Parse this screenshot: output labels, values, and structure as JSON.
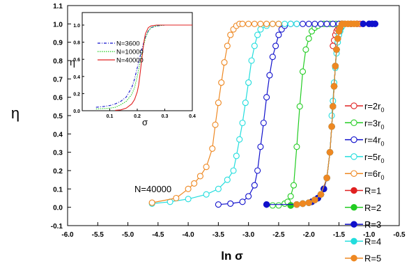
{
  "chart_data": [
    {
      "type": "scatter",
      "xlabel": "ln σ",
      "ylabel": "η",
      "xlim": [
        -6.0,
        -0.5
      ],
      "ylim": [
        -0.1,
        1.1
      ],
      "x_ticks": [
        "-6.0",
        "-5.5",
        "-5.0",
        "-4.5",
        "-4.0",
        "-3.5",
        "-3.0",
        "-2.5",
        "-2.0",
        "-1.5",
        "-1.0",
        "-0.5"
      ],
      "y_ticks": [
        "-0.1",
        "0.0",
        "0.1",
        "0.2",
        "0.3",
        "0.4",
        "0.5",
        "0.6",
        "0.7",
        "0.8",
        "0.9",
        "1.0",
        "1.1"
      ],
      "annotation": "N=40000",
      "legend_position": "right",
      "series": [
        {
          "name": "r=2r0",
          "label_main": "r=2r",
          "label_sub": "0",
          "color": "#e02020",
          "marker": "open",
          "x": [
            -1.6,
            -1.58,
            -1.56,
            -1.54,
            -1.52,
            -1.5,
            -1.48,
            -1.46,
            -1.44,
            -1.4,
            -1.35,
            -1.3,
            -1.25,
            -1.2,
            -1.15,
            -1.1
          ],
          "y": [
            0.88,
            0.91,
            0.94,
            0.96,
            0.97,
            0.98,
            0.99,
            0.995,
            1.0,
            1.0,
            1.0,
            1.0,
            1.0,
            1.0,
            1.0,
            1.0
          ]
        },
        {
          "name": "r=3r0",
          "label_main": "r=3r",
          "label_sub": "0",
          "color": "#22cc22",
          "marker": "open",
          "x": [
            -2.6,
            -2.5,
            -2.4,
            -2.35,
            -2.3,
            -2.25,
            -2.2,
            -2.15,
            -2.1,
            -2.05,
            -2.0,
            -1.95,
            -1.9,
            -1.85,
            -1.8,
            -1.75,
            -1.7,
            -1.65,
            -1.6,
            -1.55,
            -1.5,
            -1.45,
            -1.4
          ],
          "y": [
            0.01,
            0.01,
            0.02,
            0.03,
            0.06,
            0.12,
            0.33,
            0.55,
            0.74,
            0.86,
            0.92,
            0.96,
            0.98,
            0.99,
            1.0,
            1.0,
            1.0,
            1.0,
            1.0,
            1.0,
            1.0,
            1.0,
            1.0
          ]
        },
        {
          "name": "r=4r0",
          "label_main": "r=4r",
          "label_sub": "0",
          "color": "#1010cc",
          "marker": "open",
          "x": [
            -3.5,
            -3.3,
            -3.1,
            -3.0,
            -2.9,
            -2.85,
            -2.8,
            -2.75,
            -2.7,
            -2.65,
            -2.6,
            -2.55,
            -2.5,
            -2.45,
            -2.4,
            -2.3,
            -2.2,
            -2.1,
            -2.0,
            -1.9,
            -1.8,
            -1.7,
            -1.6,
            -1.5,
            -1.4,
            -1.3
          ],
          "y": [
            0.015,
            0.02,
            0.03,
            0.06,
            0.12,
            0.2,
            0.33,
            0.46,
            0.6,
            0.72,
            0.82,
            0.88,
            0.94,
            0.97,
            0.99,
            1.0,
            1.0,
            1.0,
            1.0,
            1.0,
            1.0,
            1.0,
            1.0,
            1.0,
            1.0,
            1.0
          ]
        },
        {
          "name": "r=5r0",
          "label_main": "r=5r",
          "label_sub": "0",
          "color": "#22dddd",
          "marker": "open",
          "x": [
            -4.6,
            -4.3,
            -4.0,
            -3.7,
            -3.5,
            -3.35,
            -3.25,
            -3.2,
            -3.15,
            -3.1,
            -3.05,
            -3.0,
            -2.95,
            -2.9,
            -2.85,
            -2.8,
            -2.7,
            -2.6,
            -2.5,
            -2.4,
            -2.3,
            -2.2
          ],
          "y": [
            0.02,
            0.03,
            0.045,
            0.07,
            0.1,
            0.15,
            0.2,
            0.28,
            0.37,
            0.46,
            0.57,
            0.68,
            0.8,
            0.88,
            0.94,
            0.97,
            0.99,
            1.0,
            1.0,
            1.0,
            1.0,
            1.0
          ],
          "x2": [
            -1.62,
            -1.6,
            -1.58,
            -1.56,
            -1.54,
            -1.52,
            -1.5,
            -1.48,
            -1.46,
            -1.44,
            -1.42,
            -1.4
          ],
          "y2": [
            0.5,
            0.58,
            0.68,
            0.76,
            0.84,
            0.9,
            0.94,
            0.96,
            0.98,
            0.99,
            1.0,
            1.0
          ]
        },
        {
          "name": "r=6r0",
          "label_main": "r=6r",
          "label_sub": "0",
          "color": "#ee8822",
          "marker": "open",
          "x": [
            -4.6,
            -4.2,
            -4.0,
            -3.9,
            -3.8,
            -3.7,
            -3.6,
            -3.55,
            -3.5,
            -3.45,
            -3.4,
            -3.35,
            -3.3,
            -3.25,
            -3.2,
            -3.15,
            -3.1,
            -3.0,
            -2.9,
            -2.8,
            -2.7,
            -2.6,
            -2.5
          ],
          "y": [
            0.025,
            0.05,
            0.1,
            0.13,
            0.17,
            0.22,
            0.32,
            0.45,
            0.57,
            0.68,
            0.79,
            0.88,
            0.94,
            0.97,
            0.99,
            1.0,
            1.0,
            1.0,
            1.0,
            1.0,
            1.0,
            1.0,
            1.0
          ]
        },
        {
          "name": "R=1",
          "color": "#e02020",
          "marker": "filled",
          "x": [
            -2.3,
            -2.2,
            -2.1,
            -2.0,
            -1.95,
            -1.9,
            -1.85,
            -1.8,
            -1.75,
            -1.7,
            -1.65,
            -1.62,
            -1.6,
            -1.58,
            -1.56,
            -1.54,
            -1.52,
            -1.5,
            -1.48,
            -1.45
          ],
          "y": [
            0.01,
            0.015,
            0.02,
            0.025,
            0.03,
            0.04,
            0.05,
            0.07,
            0.1,
            0.16,
            0.3,
            0.44,
            0.55,
            0.66,
            0.77,
            0.86,
            0.92,
            0.96,
            0.98,
            1.0
          ]
        },
        {
          "name": "R=2",
          "color": "#22cc22",
          "marker": "filled",
          "x": [
            -2.3,
            -2.2,
            -2.1,
            -2.0,
            -1.95,
            -1.9,
            -1.85,
            -1.8,
            -1.75,
            -1.7,
            -1.65,
            -1.62,
            -1.6,
            -1.58,
            -1.56,
            -1.54,
            -1.52,
            -1.5,
            -1.48,
            -1.45
          ],
          "y": [
            0.01,
            0.015,
            0.02,
            0.025,
            0.03,
            0.04,
            0.05,
            0.07,
            0.1,
            0.16,
            0.3,
            0.44,
            0.55,
            0.66,
            0.77,
            0.86,
            0.92,
            0.96,
            0.98,
            1.0
          ]
        },
        {
          "name": "R=3",
          "color": "#1010cc",
          "marker": "filled",
          "x": [
            -2.7,
            -2.2,
            -2.1,
            -2.0,
            -1.95,
            -1.9,
            -1.85,
            -1.8,
            -1.75,
            -1.7,
            -1.65,
            -1.62,
            -1.6,
            -1.58,
            -1.56,
            -1.54,
            -1.52,
            -1.5,
            -1.48,
            -1.45,
            -1.3,
            -1.2,
            -1.1,
            -1.0,
            -0.95,
            -0.9
          ],
          "y": [
            0.015,
            0.015,
            0.02,
            0.025,
            0.03,
            0.04,
            0.05,
            0.07,
            0.1,
            0.16,
            0.3,
            0.44,
            0.55,
            0.66,
            0.77,
            0.86,
            0.92,
            0.96,
            0.98,
            1.0,
            1.0,
            1.0,
            1.0,
            1.0,
            1.0,
            1.0
          ]
        },
        {
          "name": "R=4",
          "color": "#22dddd",
          "marker": "filled",
          "x": [
            -2.2,
            -2.1,
            -2.0,
            -1.9,
            -1.8,
            -1.7,
            -1.65,
            -1.62,
            -1.6,
            -1.58,
            -1.56,
            -1.54,
            -1.52,
            -1.5,
            -1.48
          ],
          "y": [
            0.015,
            0.02,
            0.025,
            0.04,
            0.07,
            0.16,
            0.3,
            0.44,
            0.55,
            0.66,
            0.77,
            0.86,
            0.92,
            0.96,
            0.98
          ]
        },
        {
          "name": "R=5",
          "color": "#ee8822",
          "marker": "filled",
          "x": [
            -2.2,
            -2.1,
            -2.0,
            -1.9,
            -1.8,
            -1.7,
            -1.65,
            -1.62,
            -1.6,
            -1.58,
            -1.56,
            -1.54,
            -1.52,
            -1.5,
            -1.48,
            -1.45,
            -1.4,
            -1.35,
            -1.3,
            -1.25,
            -1.2
          ],
          "y": [
            0.015,
            0.02,
            0.025,
            0.04,
            0.07,
            0.16,
            0.3,
            0.44,
            0.55,
            0.66,
            0.77,
            0.86,
            0.92,
            0.96,
            0.98,
            1.0,
            1.0,
            1.0,
            1.0,
            1.0,
            1.0
          ]
        }
      ]
    },
    {
      "type": "line",
      "xlabel": "σ",
      "ylabel": "η",
      "xlim": [
        0.0,
        0.4
      ],
      "ylim": [
        0.0,
        1.0
      ],
      "x_ticks": [
        "0.1",
        "0.2",
        "0.3",
        "0.4"
      ],
      "y_ticks": [
        "0.0",
        "0.2",
        "0.4",
        "0.6",
        "0.8",
        "1.0"
      ],
      "legend_position": "top-left",
      "series": [
        {
          "name": "N=3600",
          "color": "#1010cc",
          "dash": "dashdot",
          "x": [
            0.05,
            0.08,
            0.1,
            0.12,
            0.14,
            0.16,
            0.18,
            0.19,
            0.2,
            0.21,
            0.22,
            0.23,
            0.24,
            0.25,
            0.27,
            0.3,
            0.35,
            0.4
          ],
          "y": [
            0.04,
            0.05,
            0.06,
            0.08,
            0.11,
            0.16,
            0.27,
            0.37,
            0.5,
            0.63,
            0.76,
            0.86,
            0.93,
            0.97,
            0.99,
            1.0,
            1.0,
            1.0
          ]
        },
        {
          "name": "N=10000",
          "color": "#22cc22",
          "dash": "dotted",
          "x": [
            0.05,
            0.08,
            0.1,
            0.12,
            0.14,
            0.16,
            0.18,
            0.19,
            0.2,
            0.21,
            0.22,
            0.23,
            0.24,
            0.25,
            0.27,
            0.3,
            0.35,
            0.4
          ],
          "y": [
            0.02,
            0.025,
            0.03,
            0.04,
            0.07,
            0.11,
            0.19,
            0.27,
            0.4,
            0.56,
            0.72,
            0.85,
            0.93,
            0.97,
            0.99,
            1.0,
            1.0,
            1.0
          ]
        },
        {
          "name": "N=40000",
          "color": "#e02020",
          "dash": "solid",
          "x": [
            0.12,
            0.14,
            0.16,
            0.18,
            0.19,
            0.2,
            0.205,
            0.21,
            0.215,
            0.22,
            0.225,
            0.23,
            0.24,
            0.25,
            0.27,
            0.3,
            0.35,
            0.4
          ],
          "y": [
            0.005,
            0.01,
            0.03,
            0.08,
            0.13,
            0.22,
            0.3,
            0.42,
            0.56,
            0.7,
            0.82,
            0.9,
            0.97,
            0.99,
            1.0,
            1.0,
            1.0,
            1.0
          ]
        }
      ]
    }
  ]
}
